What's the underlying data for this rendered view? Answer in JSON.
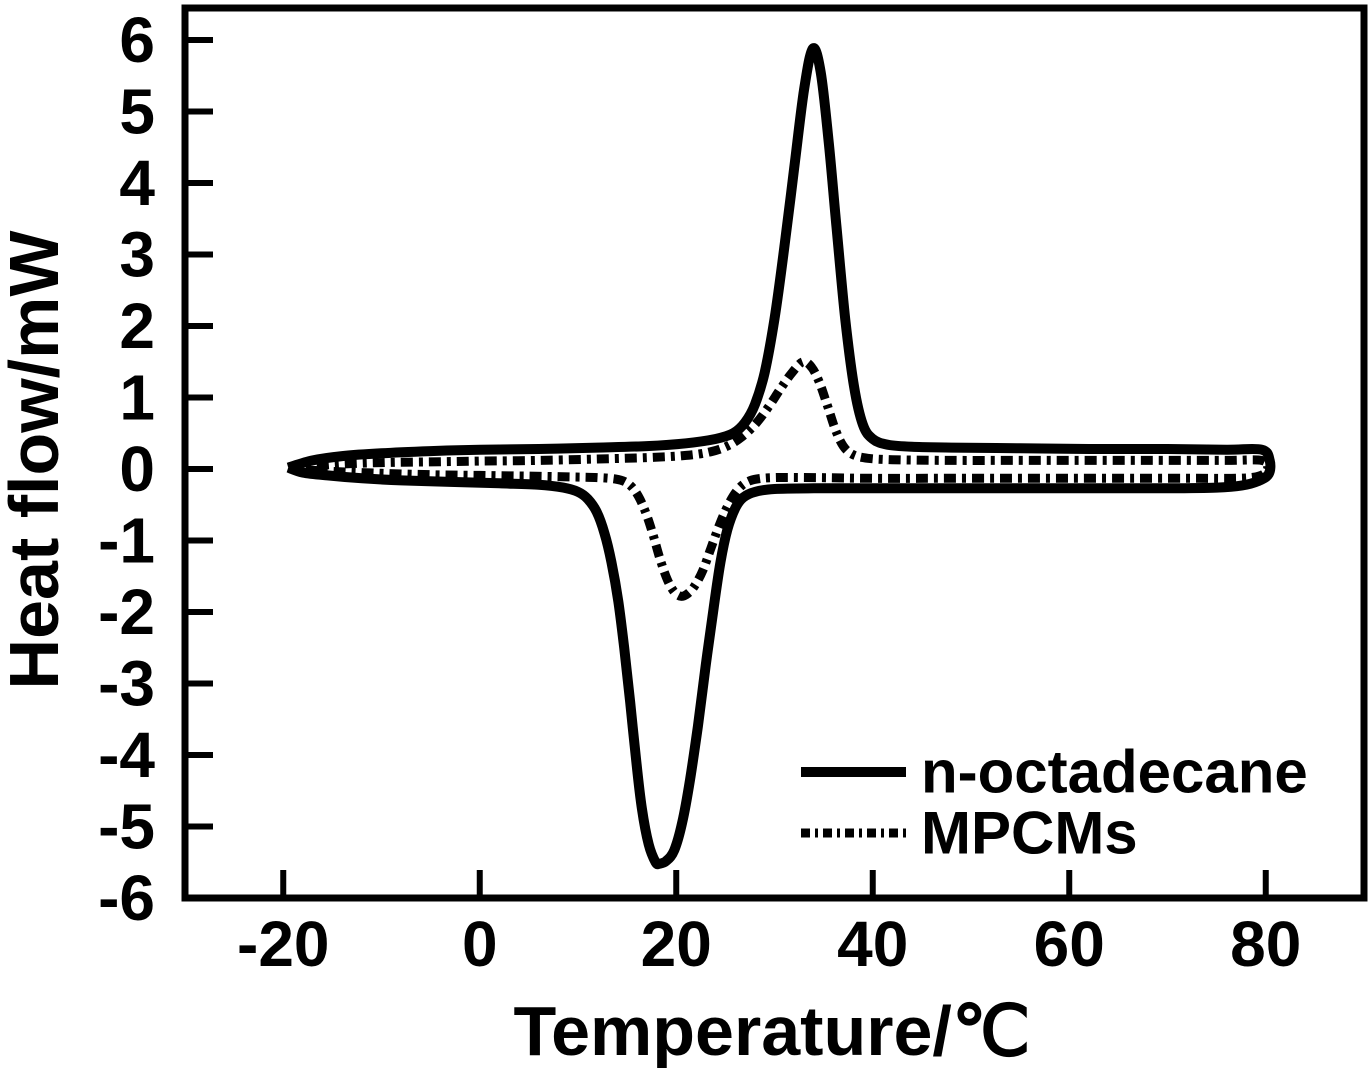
{
  "figure": {
    "background_color": "#ffffff",
    "ink_color": "#000000"
  },
  "chart_data": {
    "type": "line",
    "title": "",
    "xlabel": "Temperature/℃",
    "ylabel": "Heat flow/mW",
    "xlim": [
      -30,
      90
    ],
    "ylim": [
      -6,
      6.4
    ],
    "x_ticks": [
      -20,
      0,
      20,
      40,
      60,
      80
    ],
    "y_ticks": [
      6,
      5,
      4,
      3,
      2,
      1,
      0,
      -1,
      -2,
      -3,
      -4,
      -5,
      -6
    ],
    "grid": false,
    "legend_position": "lower right",
    "peaks": {
      "n_octadecane_melting_peak": {
        "temperature_c": 33.9,
        "heat_flow_mw": 5.9
      },
      "n_octadecane_crystallization_peak": {
        "temperature_c": 18.0,
        "heat_flow_mw": -5.5
      },
      "mpcms_melting_peak": {
        "temperature_c": 33.0,
        "heat_flow_mw": 1.5
      },
      "mpcms_crystallization_peak": {
        "temperature_c": 20.5,
        "heat_flow_mw": -1.8
      }
    },
    "series": [
      {
        "name": "n-octadecane",
        "style": "solid",
        "points": [
          [
            -19.5,
            0.02
          ],
          [
            -17,
            0.12
          ],
          [
            -14,
            0.18
          ],
          [
            -10,
            0.22
          ],
          [
            -5,
            0.25
          ],
          [
            0,
            0.27
          ],
          [
            6,
            0.28
          ],
          [
            12,
            0.3
          ],
          [
            17,
            0.32
          ],
          [
            21,
            0.36
          ],
          [
            24,
            0.42
          ],
          [
            25.8,
            0.5
          ],
          [
            27,
            0.65
          ],
          [
            28,
            0.9
          ],
          [
            29,
            1.35
          ],
          [
            30,
            2.1
          ],
          [
            31,
            3.1
          ],
          [
            32,
            4.2
          ],
          [
            33,
            5.3
          ],
          [
            33.9,
            5.88
          ],
          [
            34.7,
            5.55
          ],
          [
            35.5,
            4.6
          ],
          [
            36.3,
            3.4
          ],
          [
            37.2,
            2.1
          ],
          [
            38.1,
            1.15
          ],
          [
            39,
            0.62
          ],
          [
            40,
            0.42
          ],
          [
            41.5,
            0.34
          ],
          [
            44,
            0.31
          ],
          [
            48,
            0.3
          ],
          [
            55,
            0.29
          ],
          [
            62,
            0.28
          ],
          [
            70,
            0.28
          ],
          [
            76,
            0.27
          ],
          [
            79.6,
            0.27
          ],
          [
            80.4,
            0.12
          ],
          [
            80.3,
            -0.07
          ],
          [
            79.2,
            -0.17
          ],
          [
            77.6,
            -0.23
          ],
          [
            75,
            -0.26
          ],
          [
            70,
            -0.27
          ],
          [
            63,
            -0.27
          ],
          [
            55,
            -0.27
          ],
          [
            47,
            -0.27
          ],
          [
            40,
            -0.27
          ],
          [
            34,
            -0.27
          ],
          [
            30,
            -0.28
          ],
          [
            28,
            -0.32
          ],
          [
            26.8,
            -0.4
          ],
          [
            26,
            -0.55
          ],
          [
            25.2,
            -0.85
          ],
          [
            24.5,
            -1.3
          ],
          [
            23.8,
            -1.95
          ],
          [
            23,
            -2.75
          ],
          [
            22.2,
            -3.6
          ],
          [
            21.4,
            -4.35
          ],
          [
            20.6,
            -4.95
          ],
          [
            19.8,
            -5.33
          ],
          [
            19,
            -5.48
          ],
          [
            18.3,
            -5.52
          ],
          [
            17.9,
            -5.5
          ],
          [
            17.2,
            -5.25
          ],
          [
            16.5,
            -4.75
          ],
          [
            15.9,
            -4.05
          ],
          [
            15.3,
            -3.25
          ],
          [
            14.7,
            -2.5
          ],
          [
            14.1,
            -1.85
          ],
          [
            13.4,
            -1.3
          ],
          [
            12.7,
            -0.9
          ],
          [
            11.9,
            -0.6
          ],
          [
            11,
            -0.42
          ],
          [
            10,
            -0.32
          ],
          [
            8.5,
            -0.26
          ],
          [
            6,
            -0.22
          ],
          [
            2,
            -0.2
          ],
          [
            -3,
            -0.18
          ],
          [
            -8,
            -0.16
          ],
          [
            -12,
            -0.13
          ],
          [
            -15.5,
            -0.09
          ],
          [
            -18,
            -0.05
          ],
          [
            -19.5,
            0.02
          ]
        ]
      },
      {
        "name": "MPCMs",
        "style": "dash-dot",
        "points": [
          [
            -19.4,
            0.0
          ],
          [
            -17,
            0.04
          ],
          [
            -14,
            0.07
          ],
          [
            -10,
            0.09
          ],
          [
            -5,
            0.1
          ],
          [
            0,
            0.11
          ],
          [
            6,
            0.12
          ],
          [
            12,
            0.14
          ],
          [
            17,
            0.16
          ],
          [
            21,
            0.19
          ],
          [
            23.5,
            0.24
          ],
          [
            25.2,
            0.32
          ],
          [
            26.6,
            0.44
          ],
          [
            28,
            0.62
          ],
          [
            29.3,
            0.85
          ],
          [
            30.6,
            1.12
          ],
          [
            31.8,
            1.35
          ],
          [
            32.9,
            1.5
          ],
          [
            33.8,
            1.42
          ],
          [
            34.6,
            1.2
          ],
          [
            35.4,
            0.88
          ],
          [
            36.2,
            0.55
          ],
          [
            37,
            0.32
          ],
          [
            38,
            0.2
          ],
          [
            39.5,
            0.15
          ],
          [
            42,
            0.13
          ],
          [
            48,
            0.12
          ],
          [
            55,
            0.12
          ],
          [
            62,
            0.12
          ],
          [
            70,
            0.12
          ],
          [
            76,
            0.12
          ],
          [
            79.6,
            0.12
          ],
          [
            80.2,
            0.02
          ],
          [
            79.9,
            -0.06
          ],
          [
            79,
            -0.11
          ],
          [
            77,
            -0.13
          ],
          [
            73,
            -0.13
          ],
          [
            67,
            -0.13
          ],
          [
            60,
            -0.13
          ],
          [
            53,
            -0.13
          ],
          [
            46,
            -0.13
          ],
          [
            40,
            -0.13
          ],
          [
            34,
            -0.12
          ],
          [
            30,
            -0.12
          ],
          [
            28.2,
            -0.14
          ],
          [
            27.1,
            -0.19
          ],
          [
            26.2,
            -0.3
          ],
          [
            25.3,
            -0.5
          ],
          [
            24.4,
            -0.78
          ],
          [
            23.5,
            -1.12
          ],
          [
            22.7,
            -1.42
          ],
          [
            21.9,
            -1.63
          ],
          [
            21.2,
            -1.74
          ],
          [
            20.5,
            -1.78
          ],
          [
            19.8,
            -1.72
          ],
          [
            19.1,
            -1.55
          ],
          [
            18.4,
            -1.28
          ],
          [
            17.7,
            -0.95
          ],
          [
            17,
            -0.65
          ],
          [
            16.3,
            -0.42
          ],
          [
            15.6,
            -0.27
          ],
          [
            14.8,
            -0.18
          ],
          [
            13.8,
            -0.14
          ],
          [
            12,
            -0.12
          ],
          [
            9,
            -0.11
          ],
          [
            5,
            -0.1
          ],
          [
            0,
            -0.09
          ],
          [
            -5,
            -0.08
          ],
          [
            -10,
            -0.06
          ],
          [
            -14,
            -0.04
          ],
          [
            -17,
            -0.02
          ],
          [
            -19.4,
            0.0
          ]
        ]
      }
    ]
  }
}
